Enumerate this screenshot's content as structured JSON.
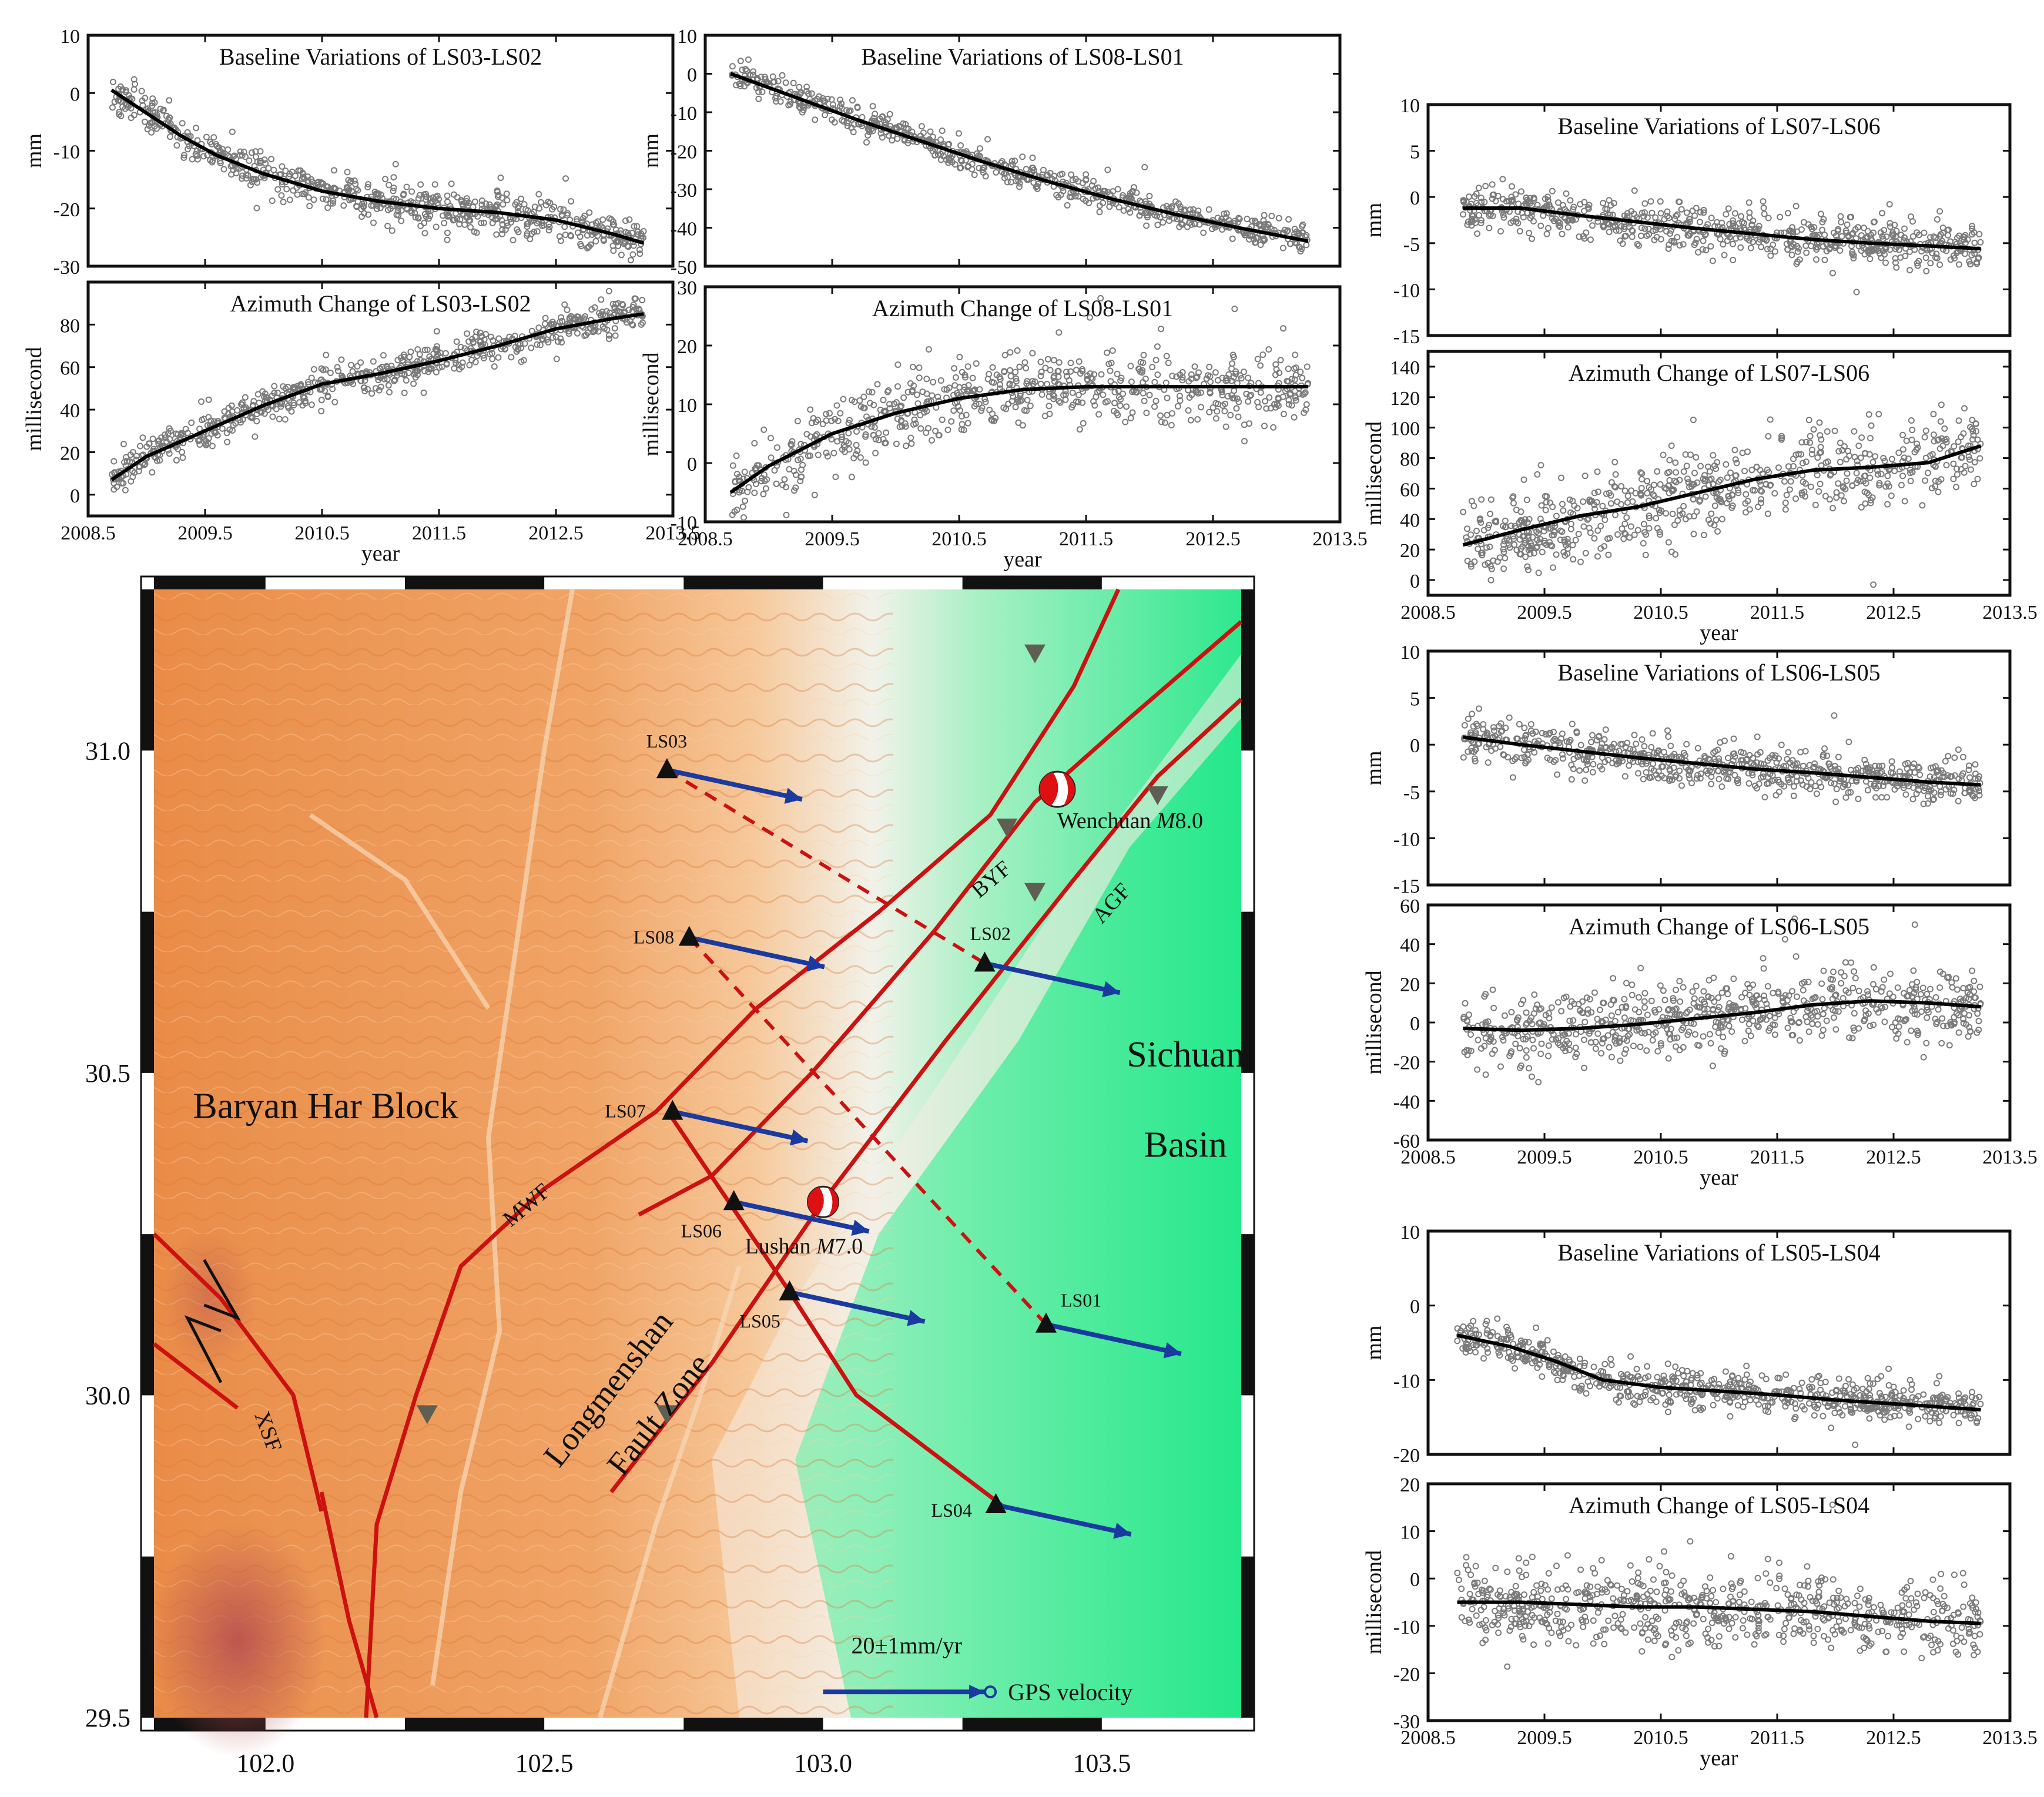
{
  "panels": [
    {
      "id": "ls03-ls02-baseline",
      "title": "Baseline Variations of LS03-LS02",
      "ylabel": "mm",
      "xlabel": "",
      "ylim": [
        -30,
        10
      ],
      "yticks": [
        "10",
        "0",
        "-10",
        "-20",
        "-30"
      ],
      "xticks": [],
      "line": [
        [
          2008.7,
          0.5
        ],
        [
          2009,
          -3.5
        ],
        [
          2009.3,
          -7.5
        ],
        [
          2009.6,
          -10.8
        ],
        [
          2010,
          -14
        ],
        [
          2010.5,
          -17
        ],
        [
          2011,
          -18.8
        ],
        [
          2011.5,
          -20
        ],
        [
          2012,
          -20.7
        ],
        [
          2012.5,
          -22
        ],
        [
          2013,
          -24.5
        ],
        [
          2013.25,
          -26
        ]
      ],
      "scatter_sd": 1.6
    },
    {
      "id": "ls03-ls02-azimuth",
      "title": "Azimuth Change of LS03-LS02",
      "ylabel": "millisecond",
      "xlabel": "year",
      "ylim": [
        -10,
        100
      ],
      "yticks": [
        "80",
        "60",
        "40",
        "20",
        "0"
      ],
      "xticks": [
        "2008.5",
        "2009.5",
        "2010.5",
        "2011.5",
        "2012.5",
        "2013.5"
      ],
      "line": [
        [
          2008.7,
          7
        ],
        [
          2009,
          18
        ],
        [
          2009.5,
          30
        ],
        [
          2010,
          42
        ],
        [
          2010.5,
          52
        ],
        [
          2011,
          57
        ],
        [
          2011.5,
          63
        ],
        [
          2012,
          70
        ],
        [
          2012.5,
          78
        ],
        [
          2013,
          83
        ],
        [
          2013.25,
          85
        ]
      ],
      "scatter_sd": 4
    },
    {
      "id": "ls08-ls01-baseline",
      "title": "Baseline Variations of LS08-LS01",
      "ylabel": "mm",
      "xlabel": "",
      "ylim": [
        -50,
        10
      ],
      "yticks": [
        "10",
        "0",
        "-10",
        "-20",
        "-30",
        "-40",
        "-50"
      ],
      "xticks": [],
      "line": [
        [
          2008.7,
          0
        ],
        [
          2009.2,
          -6
        ],
        [
          2009.7,
          -12
        ],
        [
          2010.2,
          -17.5
        ],
        [
          2010.7,
          -23
        ],
        [
          2011.2,
          -28
        ],
        [
          2011.7,
          -32.5
        ],
        [
          2012.2,
          -36.5
        ],
        [
          2012.7,
          -40
        ],
        [
          2013.25,
          -43.5
        ]
      ],
      "scatter_sd": 1.8
    },
    {
      "id": "ls08-ls01-azimuth",
      "title": "Azimuth Change of  LS08-LS01",
      "ylabel": "millisecond",
      "xlabel": "year",
      "ylim": [
        -10,
        30
      ],
      "yticks": [
        "30",
        "20",
        "10",
        "0",
        "-10"
      ],
      "xticks": [
        "2008.5",
        "2009.5",
        "2010.5",
        "2011.5",
        "2012.5",
        "2013.5"
      ],
      "line": [
        [
          2008.7,
          -5
        ],
        [
          2009,
          -0.5
        ],
        [
          2009.5,
          5
        ],
        [
          2010,
          8.5
        ],
        [
          2010.5,
          11
        ],
        [
          2011,
          12.5
        ],
        [
          2011.5,
          13
        ],
        [
          2012,
          13
        ],
        [
          2012.5,
          13
        ],
        [
          2013.25,
          13
        ]
      ],
      "scatter_sd": 3
    },
    {
      "id": "ls07-ls06-baseline",
      "title": "Baseline Variations of LS07-LS06",
      "ylabel": "mm",
      "xlabel": "",
      "ylim": [
        -15,
        10
      ],
      "yticks": [
        "10",
        "5",
        "0",
        "-5",
        "-10",
        "-15"
      ],
      "xticks": [],
      "line": [
        [
          2008.8,
          -1.2
        ],
        [
          2009.3,
          -1.2
        ],
        [
          2009.8,
          -2
        ],
        [
          2010.3,
          -2.7
        ],
        [
          2010.8,
          -3.4
        ],
        [
          2011.3,
          -4
        ],
        [
          2011.8,
          -4.6
        ],
        [
          2012.3,
          -5
        ],
        [
          2012.8,
          -5.3
        ],
        [
          2013.25,
          -5.6
        ]
      ],
      "scatter_sd": 1.2
    },
    {
      "id": "ls07-ls06-azimuth",
      "title": "Azimuth Change of LS07-LS06",
      "ylabel": "millisecond",
      "xlabel": "year",
      "ylim": [
        -10,
        150
      ],
      "yticks": [
        "140",
        "120",
        "100",
        "80",
        "60",
        "40",
        "20",
        "0"
      ],
      "xticks": [
        "2008.5",
        "2009.5",
        "2010.5",
        "2011.5",
        "2012.5",
        "2013.5"
      ],
      "line": [
        [
          2008.8,
          23
        ],
        [
          2009.3,
          33
        ],
        [
          2009.8,
          42
        ],
        [
          2010.3,
          48
        ],
        [
          2010.8,
          57
        ],
        [
          2011.3,
          66
        ],
        [
          2011.8,
          72
        ],
        [
          2012.3,
          74
        ],
        [
          2012.8,
          77
        ],
        [
          2013.25,
          88
        ]
      ],
      "scatter_sd": 14
    },
    {
      "id": "ls06-ls05-baseline",
      "title": "Baseline Variations of LS06-LS05",
      "ylabel": "mm",
      "xlabel": "",
      "ylim": [
        -15,
        10
      ],
      "yticks": [
        "10",
        "5",
        "0",
        "-5",
        "-10",
        "-15"
      ],
      "xticks": [],
      "line": [
        [
          2008.8,
          0.8
        ],
        [
          2009.3,
          0
        ],
        [
          2009.8,
          -0.7
        ],
        [
          2010.3,
          -1.4
        ],
        [
          2010.8,
          -2
        ],
        [
          2011.3,
          -2.6
        ],
        [
          2011.8,
          -3
        ],
        [
          2012.3,
          -3.5
        ],
        [
          2012.8,
          -4
        ],
        [
          2013.25,
          -4.3
        ]
      ],
      "scatter_sd": 1.1
    },
    {
      "id": "ls06-ls05-azimuth",
      "title": "Azimuth Change of LS06-LS05",
      "ylabel": "millisecond",
      "xlabel": "year",
      "ylim": [
        -60,
        60
      ],
      "yticks": [
        "60",
        "40",
        "20",
        "0",
        "-20",
        "-40",
        "-60"
      ],
      "xticks": [
        "2008.5",
        "2009.5",
        "2010.5",
        "2011.5",
        "2012.5",
        "2013.5"
      ],
      "line": [
        [
          2008.8,
          -3
        ],
        [
          2009.3,
          -4
        ],
        [
          2009.8,
          -3
        ],
        [
          2010.3,
          -1
        ],
        [
          2010.8,
          2
        ],
        [
          2011.3,
          5
        ],
        [
          2011.8,
          9
        ],
        [
          2012.3,
          11
        ],
        [
          2012.8,
          10
        ],
        [
          2013.25,
          8
        ]
      ],
      "scatter_sd": 9
    },
    {
      "id": "ls05-ls04-baseline",
      "title": "Baseline Variations of LS05-LS04",
      "ylabel": "mm",
      "xlabel": "",
      "ylim": [
        -20,
        10
      ],
      "yticks": [
        "10",
        "0",
        "-10",
        "-20"
      ],
      "xticks": [],
      "line": [
        [
          2008.75,
          -4
        ],
        [
          2009.2,
          -5.5
        ],
        [
          2009.6,
          -7.5
        ],
        [
          2010,
          -10
        ],
        [
          2010.5,
          -11
        ],
        [
          2011,
          -11.5
        ],
        [
          2011.5,
          -12
        ],
        [
          2012,
          -12.7
        ],
        [
          2012.5,
          -13.2
        ],
        [
          2013.25,
          -14
        ]
      ],
      "scatter_sd": 1.3
    },
    {
      "id": "ls05-ls04-azimuth",
      "title": "Azimuth  Change of  LS05-LS04",
      "ylabel": "millisecond",
      "xlabel": "year",
      "ylim": [
        -30,
        20
      ],
      "yticks": [
        "20",
        "10",
        "0",
        "-10",
        "-20",
        "-30"
      ],
      "xticks": [
        "2008.5",
        "2009.5",
        "2010.5",
        "2011.5",
        "2012.5",
        "2013.5"
      ],
      "line": [
        [
          2008.75,
          -5
        ],
        [
          2009.3,
          -5
        ],
        [
          2009.8,
          -5.5
        ],
        [
          2010.3,
          -6
        ],
        [
          2010.8,
          -6
        ],
        [
          2011.3,
          -6.5
        ],
        [
          2011.8,
          -7
        ],
        [
          2012.3,
          -8
        ],
        [
          2012.8,
          -9
        ],
        [
          2013.25,
          -9.5
        ]
      ],
      "scatter_sd": 4
    }
  ],
  "map": {
    "xticks": [
      "102.0",
      "102.5",
      "103.0",
      "103.5"
    ],
    "yticks": [
      "31.0",
      "30.5",
      "30.0",
      "29.5"
    ],
    "lonlim": [
      101.8,
      103.75
    ],
    "latlim": [
      29.5,
      31.25
    ],
    "colors": {
      "fault": "#cc1111",
      "gps": "#1a3aa0",
      "baseline": "#cc1111"
    },
    "stations": [
      {
        "id": "LS03",
        "label": "LS03",
        "lon": 102.72,
        "lat": 30.97
      },
      {
        "id": "LS08",
        "label": "LS08",
        "lon": 102.76,
        "lat": 30.71
      },
      {
        "id": "LS02",
        "label": "LS02",
        "lon": 103.29,
        "lat": 30.67
      },
      {
        "id": "LS07",
        "label": "LS07",
        "lon": 102.73,
        "lat": 30.44
      },
      {
        "id": "LS06",
        "label": "LS06",
        "lon": 102.84,
        "lat": 30.3
      },
      {
        "id": "LS05",
        "label": "LS05",
        "lon": 102.94,
        "lat": 30.16
      },
      {
        "id": "LS01",
        "label": "LS01",
        "lon": 103.4,
        "lat": 30.11
      },
      {
        "id": "LS04",
        "label": "LS04",
        "lon": 103.31,
        "lat": 29.83
      }
    ],
    "labels": {
      "baryan": "Baryan Har Block",
      "sichuan1": "Sichuan",
      "sichuan2": "Basin",
      "lmf1": "Longmenshan",
      "lmf2": "Fault Zone",
      "mwf": "MWF",
      "byf": "BYF",
      "agf": "AGF",
      "xsf": "XSF",
      "wenchuan_name": "Wenchuan ",
      "wenchuan_m": "M",
      "wenchuan_mag": "8.0",
      "lushan_name": "Lushan ",
      "lushan_m": "M",
      "lushan_mag": "7.0",
      "scale": "20±1mm/yr",
      "gps_legend": "GPS velocity"
    }
  }
}
